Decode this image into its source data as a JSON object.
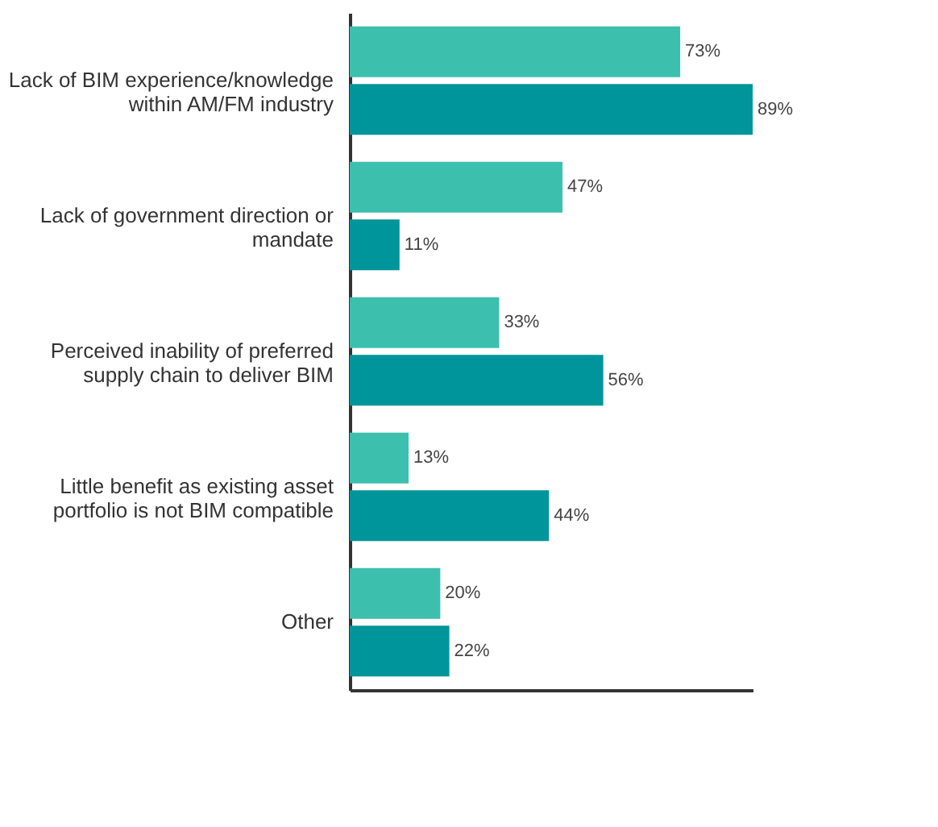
{
  "chart_data": {
    "type": "bar",
    "orientation": "horizontal",
    "relative": false,
    "categories": [
      "Lack of BIM experience/knowledge within AM/FM industry",
      "Lack of government direction or mandate",
      "Perceived inability of preferred supply chain to deliver BIM",
      "Little benefit as existing asset portfolio is not BIM compatible",
      "Other"
    ],
    "series": [
      {
        "color": "#3dbfad",
        "values": [
          73,
          47,
          33,
          13,
          20
        ],
        "value_labels": [
          "73%",
          "47%",
          "33%",
          "13%",
          "20%"
        ]
      },
      {
        "color": "#00959a",
        "values": [
          89,
          11,
          56,
          44,
          22
        ],
        "value_labels": [
          "89%",
          "11%",
          "56%",
          "44%",
          "22%"
        ]
      }
    ],
    "grid": false,
    "tick_labels": "y"
  }
}
